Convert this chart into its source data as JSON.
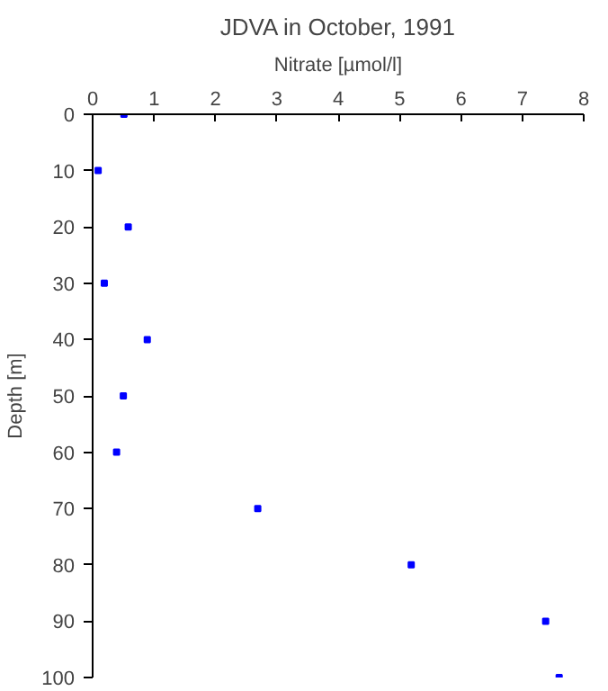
{
  "chart_data": {
    "type": "scatter",
    "title": "JDVA in October, 1991",
    "xlabel": "Nitrate [µmol/l]",
    "ylabel": "Depth [m]",
    "x": [
      0.51,
      0.09,
      0.58,
      0.19,
      0.89,
      0.5,
      0.39,
      2.69,
      5.19,
      7.38,
      7.6
    ],
    "series": [
      {
        "color": "#0000ff",
        "values": [
          0,
          10,
          20,
          30,
          40,
          50,
          60,
          70,
          80,
          90,
          100
        ]
      }
    ],
    "xlim": [
      0,
      8
    ],
    "xticks": [
      0,
      1,
      2,
      3,
      4,
      5,
      6,
      7,
      8
    ],
    "ylim": [
      100,
      0
    ],
    "yticks": [
      0,
      10,
      20,
      30,
      40,
      50,
      60,
      70,
      80,
      90,
      100
    ],
    "grid": false,
    "marker": "square"
  }
}
